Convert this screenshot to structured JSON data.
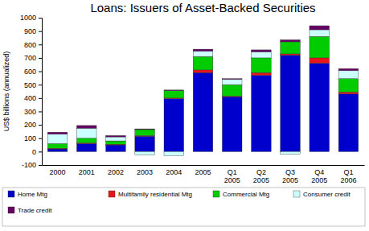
{
  "chart_data": {
    "type": "bar",
    "title": "Loans: Issuers of Asset-Backed Securities",
    "y_label": "US$ billions (annualized)",
    "categories": [
      "2000",
      "2001",
      "2002",
      "2003",
      "2004",
      "2005",
      "Q1 2005",
      "Q2 2005",
      "Q3 2005",
      "Q4 2005",
      "Q1 2006"
    ],
    "series": [
      {
        "name": "Home Mtg",
        "color": "#0000cc",
        "values": [
          20,
          60,
          50,
          115,
          395,
          590,
          410,
          570,
          720,
          660,
          430
        ]
      },
      {
        "name": "Multifamily residential Mtg",
        "color": "#e8161b",
        "values": [
          5,
          5,
          5,
          5,
          5,
          20,
          5,
          20,
          10,
          40,
          15
        ]
      },
      {
        "name": "Commercial Mtg",
        "color": "#00cc00",
        "values": [
          35,
          35,
          25,
          45,
          55,
          100,
          85,
          110,
          90,
          160,
          100
        ]
      },
      {
        "name": "Consumer credit",
        "color": "#ccffff",
        "values": [
          70,
          75,
          30,
          -25,
          -30,
          40,
          40,
          45,
          -20,
          50,
          60
        ]
      },
      {
        "name": "Trade credit",
        "color": "#660066",
        "values": [
          15,
          20,
          10,
          5,
          5,
          15,
          5,
          15,
          15,
          30,
          15
        ]
      }
    ],
    "stacked": true,
    "grid": false,
    "legend": "bottom",
    "ylim": [
      -100,
      1000
    ],
    "yticks": [
      -100,
      0,
      100,
      200,
      300,
      400,
      500,
      600,
      700,
      800,
      900,
      1000
    ]
  }
}
